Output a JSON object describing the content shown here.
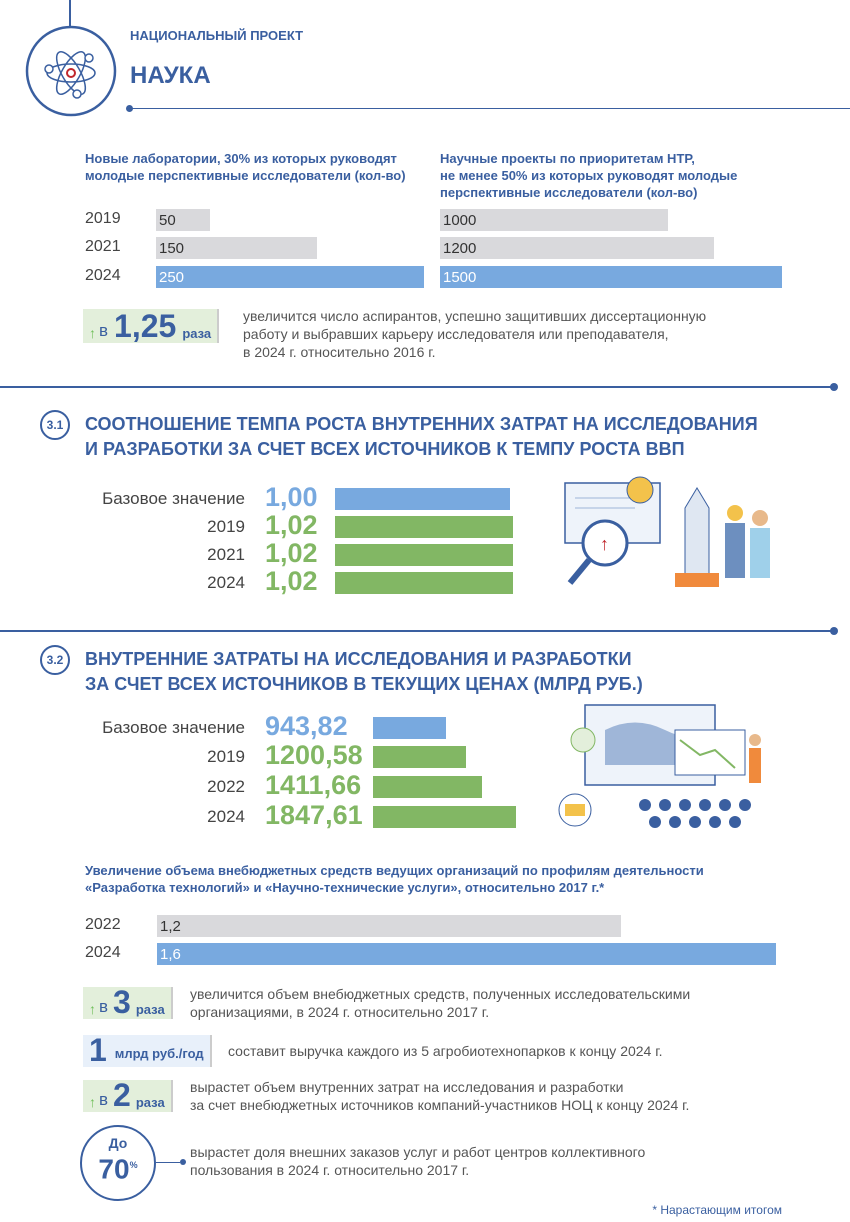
{
  "header": {
    "subtitle": "НАЦИОНАЛЬНЫЙ ПРОЕКТ",
    "title": "НАУКА",
    "icon": "atom-icon"
  },
  "colors": {
    "primary": "#3a5fa0",
    "bar_gray": "#d9d9dc",
    "bar_blue": "#78a9df",
    "bar_green": "#82b764",
    "value_blue": "#78a9df",
    "value_green": "#82b764"
  },
  "chart_data": [
    {
      "type": "bar",
      "title": "Новые лаборатории, 30% из которых руководят молодые перспективные исследователи (кол-во)",
      "categories": [
        "2019",
        "2021",
        "2024"
      ],
      "values": [
        50,
        150,
        250
      ],
      "labels": [
        "50",
        "150",
        "250"
      ]
    },
    {
      "type": "bar",
      "title": "Научные проекты по приоритетам НТР, не менее 50% из которых руководят молодые перспективные исследователи (кол-во)",
      "categories": [
        "2019",
        "2021",
        "2024"
      ],
      "values": [
        1000,
        1200,
        1500
      ],
      "labels": [
        "1000",
        "1200",
        "1500"
      ]
    },
    {
      "type": "bar",
      "section": "3.1",
      "title": "СООТНОШЕНИЕ ТЕМПА РОСТА ВНУТРЕННИХ ЗАТРАТ НА ИССЛЕДОВАНИЯ И РАЗРАБОТКИ ЗА СЧЕТ ВСЕХ ИСТОЧНИКОВ К ТЕМПУ РОСТА ВВП",
      "categories": [
        "Базовое значение",
        "2019",
        "2021",
        "2024"
      ],
      "values": [
        1.0,
        1.02,
        1.02,
        1.02
      ],
      "labels": [
        "1,00",
        "1,02",
        "1,02",
        "1,02"
      ]
    },
    {
      "type": "bar",
      "section": "3.2",
      "title": "ВНУТРЕННИЕ ЗАТРАТЫ НА ИССЛЕДОВАНИЯ И РАЗРАБОТКИ ЗА СЧЕТ ВСЕХ ИСТОЧНИКОВ В ТЕКУЩИХ ЦЕНАХ (МЛРД РУБ.)",
      "categories": [
        "Базовое значение",
        "2019",
        "2022",
        "2024"
      ],
      "values": [
        943.82,
        1200.58,
        1411.66,
        1847.61
      ],
      "labels": [
        "943,82",
        "1200,58",
        "1411,66",
        "1847,61"
      ]
    },
    {
      "type": "bar",
      "title": "Увеличение объема внебюджетных средств ведущих организаций по профилям деятельности «Разработка технологий» и «Научно-технические услуги», относительно 2017 г.*",
      "categories": [
        "2022",
        "2024"
      ],
      "values": [
        1.2,
        1.6
      ],
      "labels": [
        "1,2",
        "1,6"
      ]
    }
  ],
  "charts_text": {
    "c1_line1": "Новые лаборатории, 30% из которых руководят",
    "c1_line2": "молодые перспективные исследователи (кол-во)",
    "c2_line1": "Научные проекты по приоритетам НТР,",
    "c2_line2": "не менее 50% из которых руководят молодые",
    "c2_line3": "перспективные исследователи (кол-во)",
    "s31_line1": "СООТНОШЕНИЕ ТЕМПА РОСТА ВНУТРЕННИХ ЗАТРАТ НА ИССЛЕДОВАНИЯ",
    "s31_line2": "И РАЗРАБОТКИ ЗА СЧЕТ ВСЕХ ИСТОЧНИКОВ К ТЕМПУ РОСТА ВВП",
    "s32_line1": "ВНУТРЕННИЕ ЗАТРАТЫ НА ИССЛЕДОВАНИЯ И РАЗРАБОТКИ",
    "s32_line2": "ЗА СЧЕТ ВСЕХ ИСТОЧНИКОВ В ТЕКУЩИХ ЦЕНАХ (МЛРД РУБ.)",
    "c5_line1": "Увеличение объема внебюджетных средств ведущих организаций по профилям деятельности",
    "c5_line2": "«Разработка технологий» и «Научно-технические услуги», относительно 2017 г.*"
  },
  "callouts": [
    {
      "prefix": "в",
      "value": "1,25",
      "unit": "раза",
      "text1": "увеличится число аспирантов, успешно защитивших диссертационную",
      "text2": "работу и выбравших карьеру исследователя или преподавателя,",
      "text3": "в 2024 г. относительно 2016 г."
    },
    {
      "prefix": "в",
      "value": "3",
      "unit": "раза",
      "text1": "увеличится объем внебюджетных средств, полученных исследовательскими",
      "text2": "организациями, в 2024 г. относительно 2017 г."
    },
    {
      "value": "1",
      "unit": "млрд руб./год",
      "text1": "составит выручка каждого из 5 агробиотехнопарков к концу 2024 г."
    },
    {
      "prefix": "в",
      "value": "2",
      "unit": "раза",
      "text1": "вырастет объем внутренних затрат на исследования и разработки",
      "text2": "за счет внебюджетных источников компаний-участников НОЦ к концу 2024 г."
    },
    {
      "prefix": "До",
      "value": "70",
      "unit": "%",
      "text1": "вырастет доля внешних заказов услуг и работ центров коллективного",
      "text2": "пользования в 2024 г. относительно 2017 г."
    }
  ],
  "footnote": "* Нарастающим итогом"
}
